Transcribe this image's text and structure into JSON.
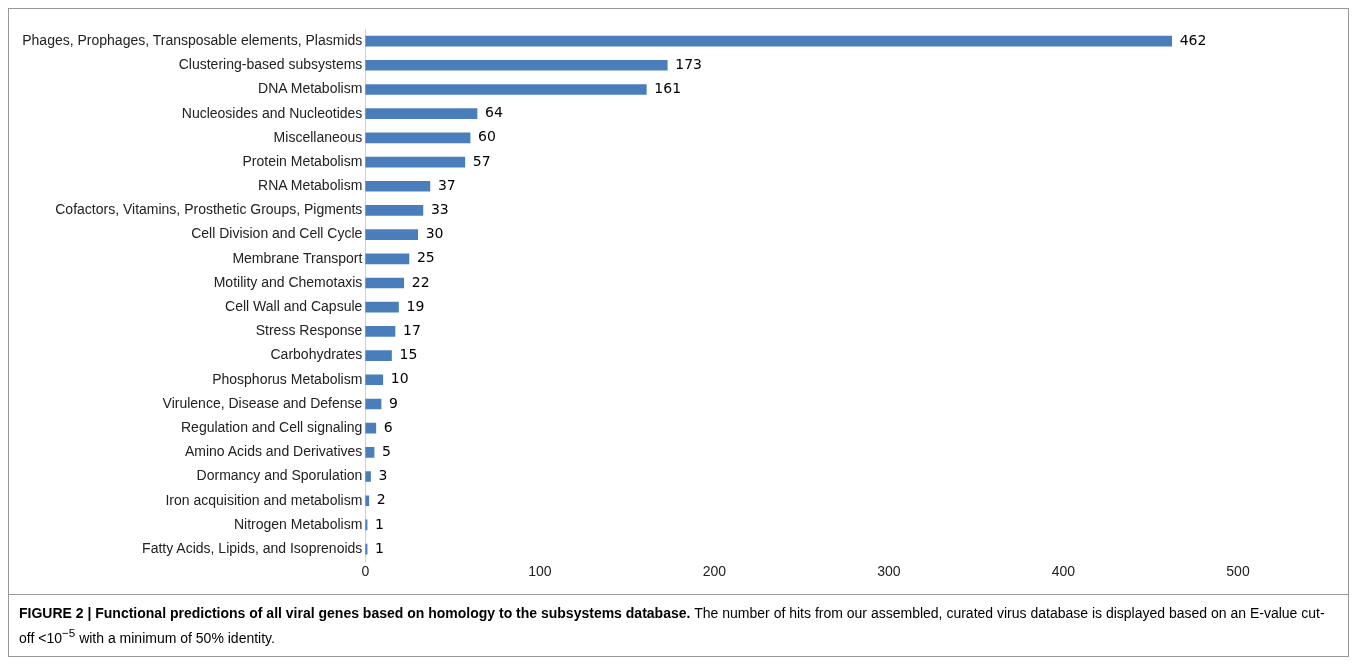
{
  "chart_data": {
    "type": "bar",
    "orientation": "horizontal",
    "categories": [
      "Phages, Prophages, Transposable elements, Plasmids",
      "Clustering-based subsystems",
      "DNA Metabolism",
      "Nucleosides and Nucleotides",
      "Miscellaneous",
      "Protein Metabolism",
      "RNA Metabolism",
      "Cofactors, Vitamins, Prosthetic Groups, Pigments",
      "Cell Division and Cell Cycle",
      "Membrane Transport",
      "Motility and Chemotaxis",
      "Cell Wall and Capsule",
      "Stress Response",
      "Carbohydrates",
      "Phosphorus Metabolism",
      "Virulence, Disease and Defense",
      "Regulation and Cell signaling",
      "Amino Acids and Derivatives",
      "Dormancy and Sporulation",
      "Iron acquisition and metabolism",
      "Nitrogen Metabolism",
      "Fatty Acids, Lipids, and Isoprenoids"
    ],
    "values": [
      462,
      173,
      161,
      64,
      60,
      57,
      37,
      33,
      30,
      25,
      22,
      19,
      17,
      15,
      10,
      9,
      6,
      5,
      3,
      2,
      1,
      1
    ],
    "color": "#4a7ebb",
    "xlim": [
      0,
      500
    ],
    "xticks": [
      0,
      100,
      200,
      300,
      400,
      500
    ],
    "grid": false,
    "legend": false,
    "data_labels": true,
    "annotations": [
      "FIGURE 2 | Functional predictions of all viral genes based on homology to the subsystems database.",
      "The number of hits from our assembled, curated virus database is displayed based on an E-value cut-off <10$^{−5}$ with a minimum of 50% identity."
    ]
  }
}
